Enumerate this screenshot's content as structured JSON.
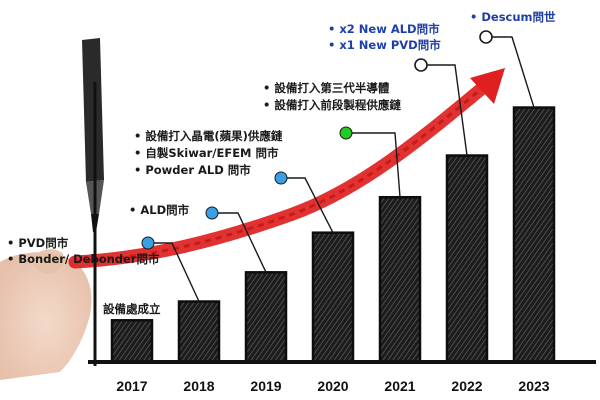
{
  "chart_data": {
    "type": "bar",
    "title": "",
    "xlabel": "",
    "ylabel": "",
    "categories": [
      "2017",
      "2018",
      "2019",
      "2020",
      "2021",
      "2022",
      "2023"
    ],
    "values": [
      1.0,
      1.45,
      2.15,
      3.1,
      3.95,
      4.95,
      6.1
    ],
    "ylim": [
      0,
      7
    ],
    "grid": false,
    "legend": "none",
    "trend_arrow": {
      "color": "#e02020",
      "direction": "up-right"
    },
    "milestones": [
      {
        "year": "2017",
        "marker": "none",
        "color": "#1a1a1a",
        "lines": [
          {
            "text": "設備處成立",
            "bullet": false
          }
        ]
      },
      {
        "year": "2018",
        "marker": "filled",
        "marker_color": "#3aa0e6",
        "color": "#1a1a1a",
        "lines": [
          {
            "text": "PVD問市",
            "bullet": true
          },
          {
            "text": "Bonder/ Debonder問市",
            "bullet": true
          }
        ]
      },
      {
        "year": "2019",
        "marker": "filled",
        "marker_color": "#3aa0e6",
        "color": "#1a1a1a",
        "lines": [
          {
            "text": "ALD問市",
            "bullet": true
          }
        ]
      },
      {
        "year": "2020",
        "marker": "filled",
        "marker_color": "#3aa0e6",
        "color": "#1a1a1a",
        "lines": [
          {
            "text": "設備打入晶電(蘋果)供應鏈",
            "bullet": true
          },
          {
            "text": "自製Skiwar/EFEM 問市",
            "bullet": true
          },
          {
            "text": "Powder ALD 問市",
            "bullet": true
          }
        ]
      },
      {
        "year": "2021",
        "marker": "filled",
        "marker_color": "#22cc22",
        "color": "#1a1a1a",
        "lines": [
          {
            "text": "設備打入第三代半導體",
            "bullet": true
          },
          {
            "text": "設備打入前段製程供應鏈",
            "bullet": true
          }
        ]
      },
      {
        "year": "2022",
        "marker": "hollow",
        "marker_color": "#ffffff",
        "color": "#1f3fa8",
        "lines": [
          {
            "text": "x2 New ALD問市",
            "bullet": true
          },
          {
            "text": "x1 New PVD問市",
            "bullet": true
          }
        ]
      },
      {
        "year": "2023",
        "marker": "hollow",
        "marker_color": "#ffffff",
        "color": "#1f3fa8",
        "lines": [
          {
            "text": "Descum問世",
            "bullet": true
          }
        ]
      }
    ]
  }
}
